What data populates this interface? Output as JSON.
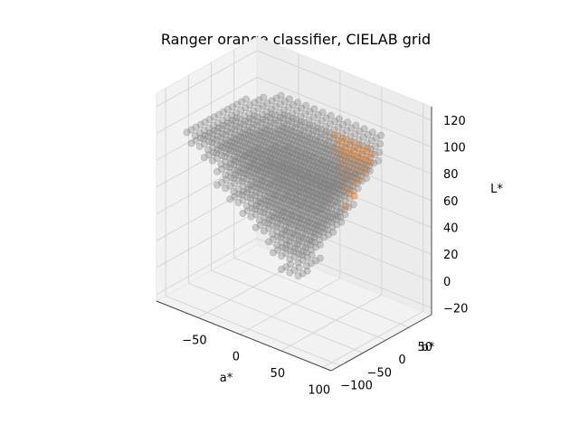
{
  "chart_data": {
    "type": "scatter",
    "projection": "3d",
    "title": "Ranger orange classifier, CIELAB grid",
    "xlabel": "a*",
    "ylabel": "b*",
    "zlabel": "L*",
    "xlim": [
      -100,
      110
    ],
    "ylim": [
      -120,
      100
    ],
    "zlim": [
      -25,
      130
    ],
    "x_ticks": [
      -50,
      0,
      50,
      100
    ],
    "y_ticks": [
      -100,
      -50,
      0,
      50
    ],
    "z_ticks": [
      -20,
      0,
      20,
      40,
      60,
      80,
      100,
      120
    ],
    "grid": true,
    "legend": "none",
    "grid_spacing": 10,
    "series": [
      {
        "class": "not-orange",
        "color": "#808080",
        "alpha": 0.35
      },
      {
        "class": "orange",
        "color": "#ff8c2e",
        "alpha": 0.6
      }
    ],
    "region": {
      "a_range": [
        -80,
        90
      ],
      "b_range": [
        -100,
        90
      ],
      "L_range": [
        0,
        100
      ]
    }
  }
}
